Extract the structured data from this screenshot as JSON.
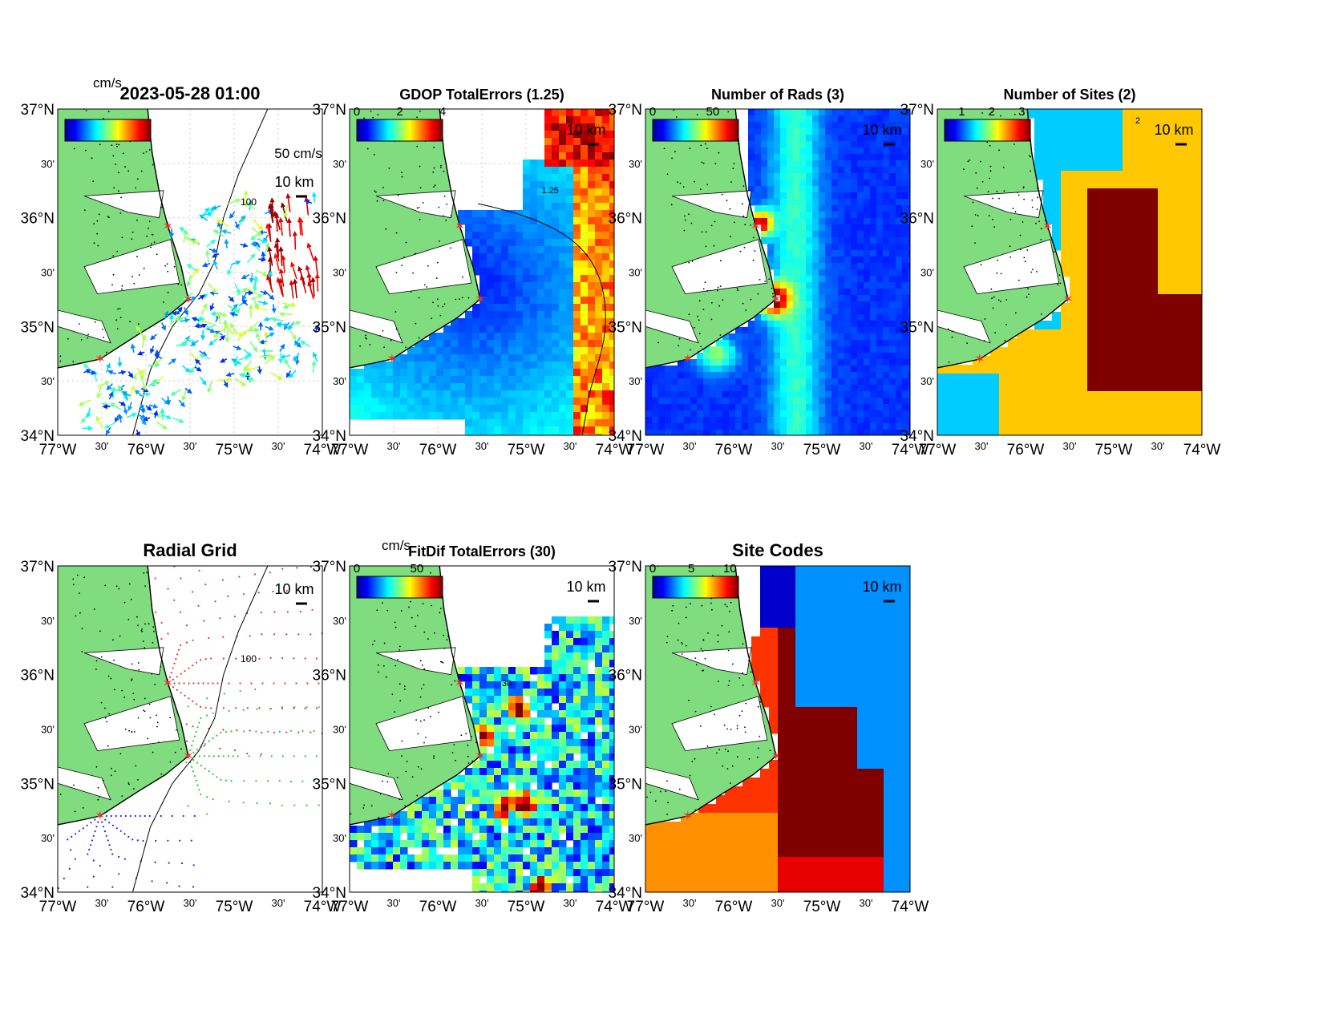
{
  "figure": {
    "timestamp": "2023-05-28 01:00",
    "units_label": "cm/s",
    "vector_scale_label": "50 cm/s",
    "scale_bar_label": "10 km"
  },
  "colors": {
    "land": "#7fdc7f",
    "site_marker": "#e8302a",
    "jet": [
      "#00008f",
      "#0000ff",
      "#0080ff",
      "#00ffff",
      "#80ff80",
      "#ffff00",
      "#ff8000",
      "#ff0000",
      "#800000"
    ]
  },
  "axes": {
    "lat_ticks": [
      "37°N",
      "30'",
      "36°N",
      "30'",
      "35°N",
      "30'",
      "34°N"
    ],
    "lon_ticks": [
      "77°W",
      "30'",
      "76°W",
      "30'",
      "75°W",
      "30'",
      "74°W"
    ]
  },
  "chart_data": [
    {
      "type": "heatmap",
      "panel": "vectors",
      "title": "2023-05-28 01:00",
      "colorbar_label": "cm/s",
      "ylim": [
        "34°N",
        "37°N"
      ],
      "xlim": [
        "77°W",
        "74°W"
      ],
      "contour_label": "100",
      "sites": [
        [
          -75.75,
          35.92
        ],
        [
          -75.52,
          35.25
        ],
        [
          -76.52,
          34.7
        ]
      ]
    },
    {
      "type": "heatmap",
      "panel": "gdop",
      "title": "GDOP TotalErrors (1.25)",
      "colorbar_ticks": [
        "0",
        "2",
        "4"
      ],
      "contour_label": "1.25",
      "grid": true
    },
    {
      "type": "heatmap",
      "panel": "nrads",
      "title": "Number of Rads (3)",
      "colorbar_ticks": [
        "0",
        "50"
      ],
      "grid": true
    },
    {
      "type": "heatmap",
      "panel": "nsites",
      "title": "Number of Sites (2)",
      "colorbar_ticks": [
        "1",
        "2",
        "3"
      ],
      "contour_label": "2",
      "values_present": [
        1,
        2,
        3
      ]
    },
    {
      "type": "scatter",
      "panel": "radial-grid",
      "title": "Radial Grid",
      "contour_label": "100",
      "series_colors": [
        "#e8302a",
        "#22cc22",
        "#2222ee"
      ]
    },
    {
      "type": "heatmap",
      "panel": "fitdif",
      "title": "FitDif TotalErrors (30)",
      "colorbar_label": "cm/s",
      "colorbar_ticks": [
        "0",
        "50"
      ],
      "contour_label": "30"
    },
    {
      "type": "heatmap",
      "panel": "site-codes",
      "title": "Site Codes",
      "colorbar_ticks": [
        "0",
        "5",
        "10"
      ]
    }
  ]
}
